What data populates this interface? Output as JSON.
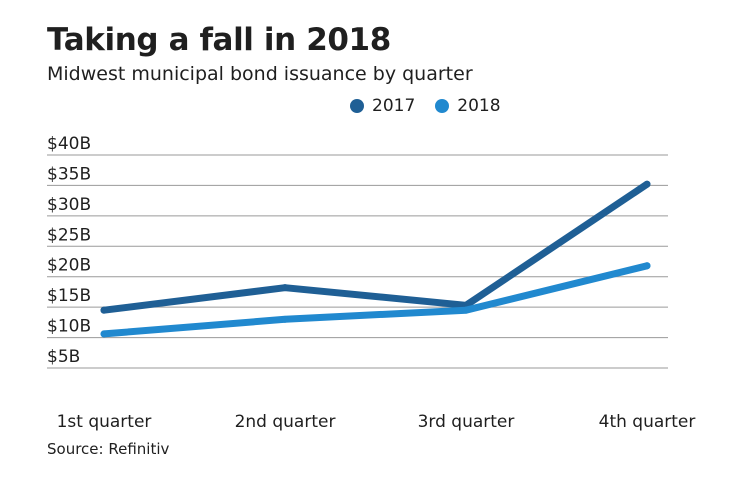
{
  "chart_data": {
    "type": "line",
    "title": "Taking a fall in 2018",
    "subtitle": "Midwest municipal bond issuance by quarter",
    "xlabel": "",
    "ylabel": "",
    "categories": [
      "1st quarter",
      "2nd quarter",
      "3rd quarter",
      "4th quarter"
    ],
    "series": [
      {
        "name": "2017",
        "color": "#1f5f95",
        "values": [
          14.5,
          18.2,
          15.3,
          35.2
        ]
      },
      {
        "name": "2018",
        "color": "#2189cf",
        "values": [
          10.6,
          13.0,
          14.5,
          21.8
        ]
      }
    ],
    "y_ticks": [
      {
        "value": 40,
        "label": "$40B"
      },
      {
        "value": 35,
        "label": "$35B"
      },
      {
        "value": 30,
        "label": "$30B"
      },
      {
        "value": 25,
        "label": "$25B"
      },
      {
        "value": 20,
        "label": "$20B"
      },
      {
        "value": 15,
        "label": "$15B"
      },
      {
        "value": 10,
        "label": "$10B"
      },
      {
        "value": 5,
        "label": "$5B"
      }
    ],
    "ylim": [
      5,
      40
    ],
    "grid": true,
    "legend_position": "top-center",
    "source": "Source: Refinitiv"
  }
}
